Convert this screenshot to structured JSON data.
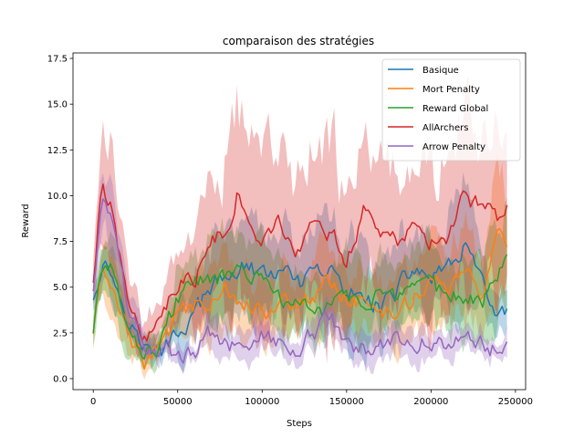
{
  "chart_data": {
    "type": "line",
    "title": "comparaison des stratégies",
    "xlabel": "Steps",
    "ylabel": "Reward",
    "xlim": [
      -12000,
      256000
    ],
    "ylim": [
      -0.6,
      17.8
    ],
    "xticks": [
      0,
      50000,
      100000,
      150000,
      200000,
      250000
    ],
    "xtick_labels": [
      "0",
      "50000",
      "100000",
      "150000",
      "200000",
      "250000"
    ],
    "yticks": [
      0.0,
      2.5,
      5.0,
      7.5,
      10.0,
      12.5,
      15.0,
      17.5
    ],
    "ytick_labels": [
      "0.0",
      "2.5",
      "5.0",
      "7.5",
      "10.0",
      "12.5",
      "15.0",
      "17.5"
    ],
    "grid": false,
    "legend_position": "top-right",
    "shaded_band": "variability band around each series",
    "series": [
      {
        "name": "Basique",
        "color": "#1f77b4",
        "x": [
          0,
          5000,
          10000,
          20000,
          30000,
          40000,
          50000,
          60000,
          70000,
          80000,
          90000,
          100000,
          110000,
          120000,
          130000,
          140000,
          150000,
          160000,
          170000,
          180000,
          190000,
          200000,
          210000,
          220000,
          230000,
          240000,
          245000
        ],
        "y": [
          4.5,
          6.3,
          6.0,
          3.5,
          1.7,
          1.3,
          2.5,
          3.5,
          5.0,
          5.5,
          6.3,
          5.5,
          6.0,
          5.0,
          5.5,
          6.0,
          4.5,
          4.8,
          4.0,
          4.8,
          6.0,
          5.5,
          5.8,
          7.5,
          5.0,
          3.3,
          3.7
        ],
        "band": [
          0.9,
          1.5,
          1.5,
          1.2,
          0.6,
          0.8,
          1.5,
          1.8,
          2.0,
          2.2,
          2.5,
          2.2,
          2.5,
          2.2,
          2.4,
          3.0,
          2.5,
          2.2,
          2.0,
          2.2,
          2.5,
          2.2,
          2.4,
          2.8,
          2.2,
          1.2,
          1.2
        ]
      },
      {
        "name": "Mort Penalty",
        "color": "#ff7f0e",
        "x": [
          0,
          5000,
          10000,
          20000,
          30000,
          40000,
          50000,
          60000,
          70000,
          80000,
          90000,
          100000,
          110000,
          120000,
          130000,
          140000,
          150000,
          160000,
          170000,
          180000,
          190000,
          200000,
          210000,
          220000,
          230000,
          240000,
          245000
        ],
        "y": [
          2.6,
          6.0,
          5.5,
          3.0,
          0.8,
          1.8,
          3.5,
          4.0,
          4.5,
          5.0,
          4.2,
          3.8,
          4.0,
          4.2,
          4.5,
          5.5,
          4.5,
          4.0,
          3.5,
          3.8,
          4.5,
          5.5,
          5.0,
          5.8,
          4.5,
          7.8,
          6.5
        ],
        "band": [
          0.6,
          1.3,
          1.2,
          1.0,
          0.4,
          0.8,
          1.2,
          1.5,
          1.8,
          2.0,
          1.8,
          1.6,
          1.8,
          1.8,
          2.0,
          2.4,
          2.0,
          1.8,
          1.6,
          1.8,
          2.0,
          2.4,
          2.2,
          2.6,
          2.0,
          3.0,
          2.6
        ]
      },
      {
        "name": "Reward Global",
        "color": "#2ca02c",
        "x": [
          0,
          5000,
          10000,
          20000,
          30000,
          40000,
          50000,
          60000,
          70000,
          80000,
          90000,
          100000,
          110000,
          120000,
          130000,
          140000,
          150000,
          160000,
          170000,
          180000,
          190000,
          200000,
          210000,
          220000,
          230000,
          240000,
          245000
        ],
        "y": [
          2.6,
          6.5,
          6.0,
          3.5,
          1.3,
          2.0,
          4.5,
          5.0,
          5.5,
          5.5,
          6.0,
          5.2,
          4.5,
          4.0,
          3.5,
          4.0,
          4.5,
          4.2,
          4.8,
          4.0,
          4.5,
          5.0,
          4.5,
          4.5,
          4.2,
          6.0,
          7.3
        ],
        "band": [
          0.6,
          1.5,
          1.4,
          1.2,
          0.6,
          0.9,
          1.6,
          1.8,
          2.0,
          2.0,
          2.2,
          2.0,
          1.8,
          1.6,
          1.6,
          1.8,
          2.0,
          1.8,
          2.0,
          1.8,
          1.8,
          2.0,
          1.8,
          1.8,
          1.8,
          2.4,
          2.6
        ]
      },
      {
        "name": "AllArchers",
        "color": "#d62728",
        "x": [
          0,
          5000,
          10000,
          20000,
          30000,
          40000,
          50000,
          60000,
          70000,
          80000,
          85000,
          90000,
          100000,
          110000,
          120000,
          130000,
          140000,
          150000,
          160000,
          170000,
          180000,
          190000,
          200000,
          210000,
          220000,
          230000,
          240000,
          245000
        ],
        "y": [
          5.3,
          10.4,
          9.5,
          4.5,
          2.3,
          3.5,
          5.0,
          5.5,
          8.0,
          8.0,
          10.3,
          9.5,
          7.5,
          8.5,
          6.5,
          8.3,
          8.0,
          6.5,
          9.0,
          8.0,
          7.5,
          8.5,
          7.5,
          8.0,
          9.8,
          9.5,
          8.5,
          9.9
        ],
        "band": [
          1.0,
          3.0,
          3.2,
          2.0,
          0.9,
          1.2,
          2.0,
          2.5,
          3.5,
          4.0,
          5.0,
          4.8,
          4.0,
          4.2,
          3.5,
          4.5,
          4.5,
          3.5,
          4.5,
          4.2,
          3.8,
          4.2,
          4.0,
          4.2,
          4.5,
          4.5,
          4.2,
          4.5
        ]
      },
      {
        "name": "Arrow Penalty",
        "color": "#9467bd",
        "x": [
          0,
          5000,
          10000,
          20000,
          30000,
          40000,
          50000,
          60000,
          70000,
          80000,
          90000,
          100000,
          110000,
          120000,
          130000,
          140000,
          150000,
          160000,
          170000,
          180000,
          190000,
          200000,
          210000,
          220000,
          230000,
          240000,
          245000
        ],
        "y": [
          4.8,
          10.5,
          9.0,
          4.0,
          2.0,
          1.5,
          1.2,
          1.5,
          2.5,
          2.0,
          1.8,
          2.5,
          2.0,
          1.8,
          2.5,
          3.5,
          1.8,
          1.6,
          1.7,
          2.5,
          2.0,
          2.0,
          1.8,
          2.3,
          2.2,
          1.4,
          1.9
        ],
        "band": [
          0.6,
          1.5,
          1.5,
          1.0,
          0.6,
          0.5,
          0.5,
          0.6,
          0.8,
          0.8,
          0.8,
          0.9,
          0.8,
          0.8,
          0.9,
          1.2,
          0.8,
          0.7,
          0.7,
          0.9,
          0.8,
          0.8,
          0.7,
          0.8,
          0.8,
          0.6,
          0.7
        ]
      }
    ]
  }
}
